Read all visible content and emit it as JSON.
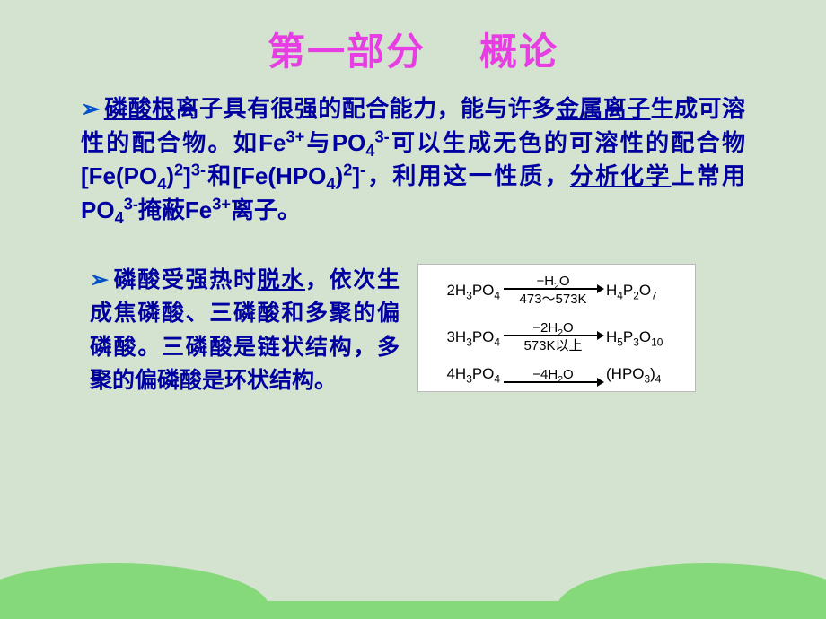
{
  "title": {
    "part1": "第一部分",
    "part2": "概论",
    "color": "#e63ee2",
    "fontsize": 42
  },
  "para1": {
    "bullet": "➢",
    "t1": "磷酸根",
    "t2": "离子具有很强的配合能力，能与许多",
    "t3": "金属离子",
    "t4": "生成可溶性的配合物。如Fe",
    "fe_sup1": "3+",
    "t5": "与PO",
    "po_sub": "4",
    "po_sup": "3-",
    "t6": "可以生成无色的可溶性的配合物[Fe(PO",
    "c1_sub": "4",
    "c1_sup1": ")",
    "c1_sup2": "2",
    "c1_t": "]",
    "c1_sup3": "3-",
    "t7": "和[Fe(HPO",
    "c2_sub": "4",
    "c2_sup1": ")",
    "c2_sup2": "2",
    "c2_t": "]",
    "c2_sup3": "-",
    "t8": "，利用这一性质，",
    "t9": "分析化学",
    "t10": "上常用PO",
    "p2_sub": "4",
    "p2_sup": "3-",
    "t11": "掩蔽Fe",
    "fe2_sup": "3+",
    "t12": "离子。"
  },
  "para2": {
    "bullet": "➢",
    "t1": "磷酸受强热时",
    "t2": "脱水",
    "t3": "，依次生成焦磷酸、三磷酸和多聚的偏磷酸。三磷酸是链状结构，多聚的偏磷酸是环状结构。"
  },
  "chem": {
    "r1": {
      "left_pre": "2H",
      "left_sub": "3",
      "left_mid": "PO",
      "left_sub2": "4",
      "top_pre": "−H",
      "top_sub": "2",
      "top_post": "O",
      "bottom": "473～573K",
      "right_pre": "H",
      "right_sub1": "4",
      "right_mid": "P",
      "right_sub2": "2",
      "right_mid2": "O",
      "right_sub3": "7"
    },
    "r2": {
      "left_pre": "3H",
      "left_sub": "3",
      "left_mid": "PO",
      "left_sub2": "4",
      "top_pre": "−2H",
      "top_sub": "2",
      "top_post": "O",
      "bottom": "573K以上",
      "right_pre": "H",
      "right_sub1": "5",
      "right_mid": "P",
      "right_sub2": "3",
      "right_mid2": "O",
      "right_sub3": "10"
    },
    "r3": {
      "left_pre": "4H",
      "left_sub": "3",
      "left_mid": "PO",
      "left_sub2": "4",
      "top_pre": "−4H",
      "top_sub": "2",
      "top_post": "O",
      "bottom": "",
      "right_pre": "(HPO",
      "right_sub1": "3",
      "right_mid": ")",
      "right_sub2": "4",
      "right_mid2": "",
      "right_sub3": ""
    }
  },
  "colors": {
    "bg": "#d4e3cf",
    "text": "#0000a0",
    "grass": "#86d97a",
    "chem_bg": "#ffffff"
  }
}
